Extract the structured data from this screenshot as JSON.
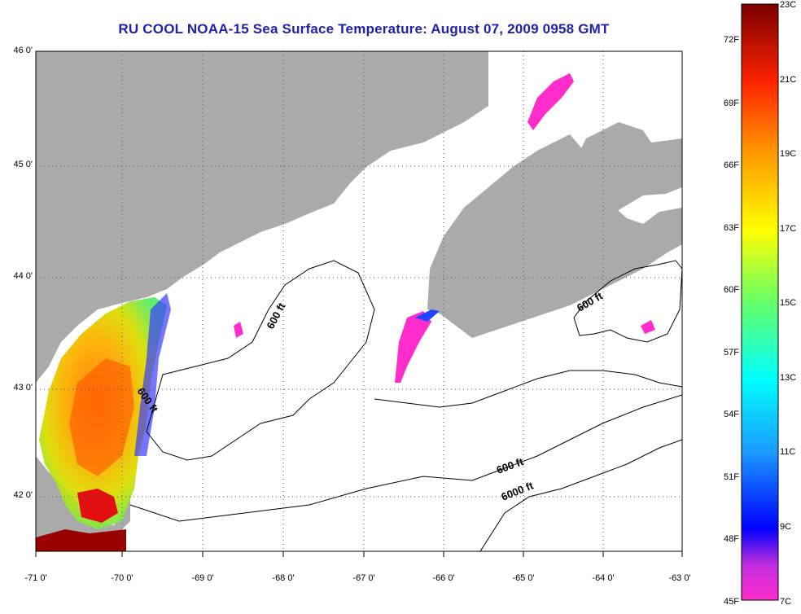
{
  "title": "RU COOL  NOAA-15  Sea Surface Temperature:  August 07, 2009 0958 GMT",
  "map": {
    "lon_range": [
      -71,
      -63
    ],
    "lat_range": [
      41.5,
      46
    ],
    "lat_ticks": [
      "46 0'",
      "45 0'",
      "44 0'",
      "43 0'",
      "42 0'"
    ],
    "lon_ticks": [
      "-71 0'",
      "-70 0'",
      "-69 0'",
      "-68 0'",
      "-67 0'",
      "-66 0'",
      "-65 0'",
      "-64 0'",
      "-63 0'"
    ],
    "land_color": "#aaaaaa",
    "ocean_color": "#ffffff",
    "gridlines": "dotted",
    "contour_labels": [
      "600 ft",
      "600 ft",
      "600 ft",
      "600 ft",
      "6000 ft"
    ]
  },
  "colorbar": {
    "range_c": [
      7,
      23
    ],
    "range_f": [
      45,
      72
    ],
    "celsius_labels": [
      "23C",
      "21C",
      "19C",
      "17C",
      "15C",
      "13C",
      "11C",
      "9C",
      "7C"
    ],
    "fahrenheit_labels": [
      "72F",
      "69F",
      "66F",
      "63F",
      "60F",
      "57F",
      "54F",
      "51F",
      "48F",
      "45F"
    ],
    "colors": [
      "#ff2ccc",
      "#cc33dd",
      "#7a2fd6",
      "#0000ff",
      "#0a4cff",
      "#1aa0ff",
      "#00e8ff",
      "#33ffb0",
      "#99ff33",
      "#ffff00",
      "#ffbb00",
      "#ff7a00",
      "#ff3300",
      "#ee0000",
      "#b30000",
      "#880000"
    ]
  }
}
